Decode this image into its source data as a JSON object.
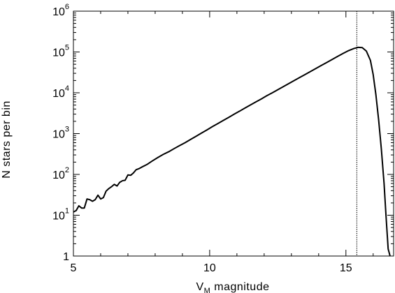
{
  "chart_data": {
    "type": "line",
    "title": "",
    "xlabel": {
      "main": "V",
      "subscript": "M",
      "rest": " magnitude"
    },
    "ylabel": "N stars per bin",
    "xlim": [
      5,
      16.75
    ],
    "ylim": [
      1,
      1000000
    ],
    "yscale": "log",
    "grid": false,
    "x_ticks": [
      5,
      10,
      15
    ],
    "y_ticks": [
      {
        "value": 1,
        "base": "1",
        "exp": ""
      },
      {
        "value": 10,
        "base": "10",
        "exp": "1"
      },
      {
        "value": 100,
        "base": "10",
        "exp": "2"
      },
      {
        "value": 1000,
        "base": "10",
        "exp": "3"
      },
      {
        "value": 10000,
        "base": "10",
        "exp": "4"
      },
      {
        "value": 100000,
        "base": "10",
        "exp": "5"
      },
      {
        "value": 1000000,
        "base": "10",
        "exp": "6"
      }
    ],
    "vertical_line": {
      "x": 15.4,
      "style": "dotted"
    },
    "series": [
      {
        "color": "#000000",
        "points": [
          [
            5.0,
            12
          ],
          [
            5.1,
            13
          ],
          [
            5.2,
            17
          ],
          [
            5.3,
            15
          ],
          [
            5.4,
            15
          ],
          [
            5.5,
            25
          ],
          [
            5.6,
            24
          ],
          [
            5.7,
            22
          ],
          [
            5.8,
            24
          ],
          [
            5.9,
            31
          ],
          [
            6.0,
            25
          ],
          [
            6.1,
            27
          ],
          [
            6.2,
            39
          ],
          [
            6.3,
            45
          ],
          [
            6.4,
            50
          ],
          [
            6.5,
            57
          ],
          [
            6.6,
            52
          ],
          [
            6.7,
            64
          ],
          [
            6.8,
            70
          ],
          [
            6.9,
            72
          ],
          [
            7.0,
            97
          ],
          [
            7.1,
            95
          ],
          [
            7.2,
            108
          ],
          [
            7.3,
            130
          ],
          [
            7.4,
            138
          ],
          [
            7.5,
            150
          ],
          [
            7.7,
            175
          ],
          [
            7.9,
            215
          ],
          [
            8.1,
            260
          ],
          [
            8.3,
            310
          ],
          [
            8.5,
            360
          ],
          [
            8.7,
            430
          ],
          [
            8.9,
            510
          ],
          [
            9.1,
            600
          ],
          [
            9.3,
            720
          ],
          [
            9.5,
            860
          ],
          [
            9.7,
            1030
          ],
          [
            9.9,
            1230
          ],
          [
            10.1,
            1480
          ],
          [
            10.3,
            1760
          ],
          [
            10.5,
            2100
          ],
          [
            10.7,
            2500
          ],
          [
            10.9,
            3000
          ],
          [
            11.1,
            3550
          ],
          [
            11.3,
            4250
          ],
          [
            11.5,
            5050
          ],
          [
            11.7,
            6000
          ],
          [
            11.9,
            7100
          ],
          [
            12.1,
            8500
          ],
          [
            12.3,
            10000
          ],
          [
            12.5,
            11900
          ],
          [
            12.7,
            14100
          ],
          [
            12.9,
            16800
          ],
          [
            13.1,
            19900
          ],
          [
            13.3,
            23600
          ],
          [
            13.5,
            28000
          ],
          [
            13.7,
            33200
          ],
          [
            13.9,
            39400
          ],
          [
            14.1,
            46800
          ],
          [
            14.3,
            55500
          ],
          [
            14.5,
            65800
          ],
          [
            14.7,
            78000
          ],
          [
            14.9,
            92500
          ],
          [
            15.1,
            108000
          ],
          [
            15.3,
            122000
          ],
          [
            15.45,
            130000
          ],
          [
            15.6,
            128000
          ],
          [
            15.75,
            105000
          ],
          [
            15.9,
            62000
          ],
          [
            16.0,
            28000
          ],
          [
            16.1,
            9000
          ],
          [
            16.2,
            2200
          ],
          [
            16.3,
            420
          ],
          [
            16.4,
            60
          ],
          [
            16.47,
            10
          ],
          [
            16.55,
            1.5
          ],
          [
            16.62,
            1
          ]
        ]
      }
    ]
  }
}
